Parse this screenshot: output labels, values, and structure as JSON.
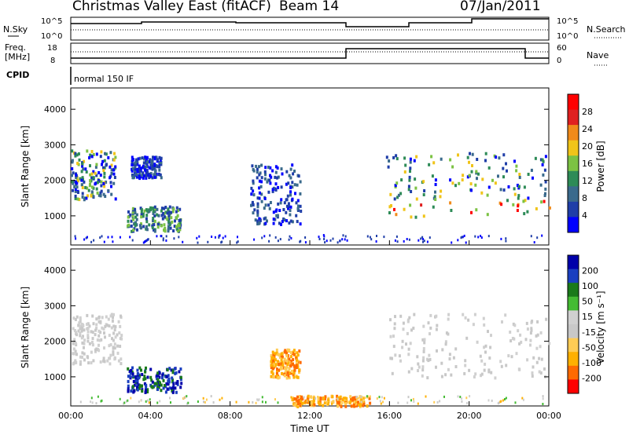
{
  "figure": {
    "title": "Christmas Valley East (fitACF)",
    "beam": "Beam 14",
    "date": "07/Jan/2011",
    "n_sky_label": "N.Sky",
    "n_search_label": "N.Search",
    "n_ticks": [
      "10^5",
      "10^0"
    ],
    "freq_label": "Freq.",
    "freq_unit": "[MHz]",
    "freq_ticks": [
      "18",
      "8"
    ],
    "nave_label": "Nave",
    "nave_ticks": [
      "60",
      "0"
    ],
    "cpid_label": "CPID",
    "cpid_value": "normal 150 IF",
    "x_label": "Time UT"
  },
  "chart_data": [
    {
      "type": "heatmap",
      "name": "power",
      "ylabel": "Slant Range [km]",
      "xlabel": "",
      "x_ticks": [
        "00:00",
        "04:00",
        "08:00",
        "12:00",
        "16:00",
        "20:00",
        "00:00"
      ],
      "xlim_hours": [
        0,
        24
      ],
      "ylim_km": [
        180,
        4600
      ],
      "y_ticks": [
        1000,
        2000,
        3000,
        4000
      ],
      "colorbar": {
        "label": "Power [dB]",
        "ticks": [
          "28",
          "24",
          "20",
          "16",
          "12",
          "8",
          "4"
        ],
        "range": [
          0,
          30
        ]
      },
      "regions": [
        {
          "t0": 0.0,
          "t1": 2.2,
          "r0": 1500,
          "r1": 2900,
          "level": "high"
        },
        {
          "t0": 2.8,
          "t1": 5.5,
          "r0": 600,
          "r1": 1300,
          "level": "mid"
        },
        {
          "t0": 3.0,
          "t1": 4.5,
          "r0": 2100,
          "r1": 2700,
          "level": "low"
        },
        {
          "t0": 9.0,
          "t1": 11.5,
          "r0": 800,
          "r1": 2500,
          "level": "low"
        },
        {
          "t0": 15.8,
          "t1": 24.0,
          "r0": 1000,
          "r1": 2800,
          "level": "high"
        }
      ]
    },
    {
      "type": "heatmap",
      "name": "velocity",
      "ylabel": "Slant Range [km]",
      "xlabel": "Time UT",
      "x_ticks": [
        "00:00",
        "04:00",
        "08:00",
        "12:00",
        "16:00",
        "20:00",
        "00:00"
      ],
      "xlim_hours": [
        0,
        24
      ],
      "ylim_km": [
        180,
        4600
      ],
      "y_ticks": [
        1000,
        2000,
        3000,
        4000
      ],
      "colorbar": {
        "label": "Velocity [m s⁻¹]",
        "ticks": [
          "200",
          "100",
          "50",
          "15",
          "-15",
          "-50",
          "-100",
          "-200"
        ],
        "range": [
          -250,
          250
        ]
      },
      "regions": [
        {
          "t0": 0.0,
          "t1": 2.5,
          "r0": 1400,
          "r1": 2800,
          "level": "ground"
        },
        {
          "t0": 2.8,
          "t1": 5.5,
          "r0": 600,
          "r1": 1300,
          "level": "toward"
        },
        {
          "t0": 10.0,
          "t1": 11.5,
          "r0": 1000,
          "r1": 1800,
          "level": "away"
        },
        {
          "t0": 11.0,
          "t1": 15.0,
          "r0": 200,
          "r1": 500,
          "level": "away"
        },
        {
          "t0": 15.8,
          "t1": 24.0,
          "r0": 1000,
          "r1": 2800,
          "level": "ground"
        }
      ]
    }
  ],
  "colors": {
    "power_scale": [
      "#0000ff",
      "#1f3ea8",
      "#3a6a8c",
      "#2e8b57",
      "#7cc243",
      "#f0c419",
      "#f08a1a",
      "#e02020",
      "#ff0000"
    ],
    "velocity_scale": [
      "#ff0000",
      "#ff6a00",
      "#ffb000",
      "#ffcc55",
      "#c8c8c8",
      "#d0d0d0",
      "#44bb33",
      "#1a7a1a",
      "#1a3fc0",
      "#0000aa"
    ]
  }
}
